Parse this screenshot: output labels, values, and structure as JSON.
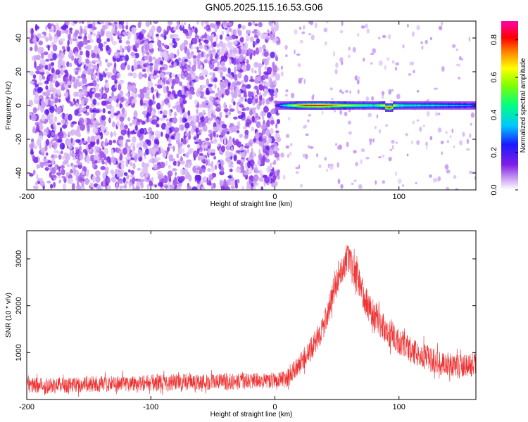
{
  "title": "GN05.2025.115.16.53.G06",
  "chart_data": [
    {
      "type": "heatmap",
      "xlabel": "Height of straight line (km)",
      "ylabel": "Frequency (Hz)",
      "xlim": [
        -200,
        162
      ],
      "ylim": [
        -50,
        50
      ],
      "xticks": [
        -200,
        -100,
        0,
        100
      ],
      "yticks": [
        -40,
        -20,
        0,
        20,
        40
      ],
      "colorbar": {
        "label": "Normalized spectral amplitude",
        "range": [
          0,
          0.9
        ],
        "ticks": [
          "0.0",
          "0.2",
          "0.4",
          "0.6",
          "0.8"
        ],
        "colormap": "rainbow (white/violet low to red/magenta high)"
      },
      "colors": {
        "low": "#d8b8f4",
        "mid": "#7f1fe6",
        "high": "#ff0000"
      },
      "signal_band": {
        "description": "narrow band centered near 0 Hz for heights 0 to 162 km",
        "x_start": 0,
        "x_end": 162,
        "frequency_center": 0,
        "frequency_halfwidth": 2.5,
        "amplitude_profile": [
          {
            "x": 0,
            "amp": 0.15
          },
          {
            "x": 5,
            "amp": 0.35
          },
          {
            "x": 20,
            "amp": 0.75
          },
          {
            "x": 35,
            "amp": 0.85
          },
          {
            "x": 50,
            "amp": 0.7
          },
          {
            "x": 65,
            "amp": 0.55
          },
          {
            "x": 80,
            "amp": 0.45
          },
          {
            "x": 92,
            "amp": 0.8
          },
          {
            "x": 100,
            "amp": 0.45
          },
          {
            "x": 130,
            "amp": 0.4
          },
          {
            "x": 162,
            "amp": 0.3
          }
        ]
      },
      "noise_region": {
        "description": "dense scattered noise blobs at all frequencies for heights below 0 km, sparse above",
        "x_start": -200,
        "x_end": 0
      }
    },
    {
      "type": "line",
      "xlabel": "Height of straight line (km)",
      "ylabel": "SNR (10 * v/v)",
      "xlim": [
        -200,
        162
      ],
      "ylim": [
        0,
        3600
      ],
      "xticks": [
        -200,
        -100,
        0,
        100
      ],
      "yticks": [
        1000,
        2000,
        3000
      ],
      "line_color": "#ee3333",
      "series": [
        {
          "envelope": [
            {
              "x": -200,
              "mean": 300,
              "spread": 170
            },
            {
              "x": -150,
              "mean": 320,
              "spread": 170
            },
            {
              "x": -100,
              "mean": 360,
              "spread": 180
            },
            {
              "x": -50,
              "mean": 380,
              "spread": 180
            },
            {
              "x": 0,
              "mean": 400,
              "spread": 170
            },
            {
              "x": 10,
              "mean": 450,
              "spread": 190
            },
            {
              "x": 20,
              "mean": 750,
              "spread": 230
            },
            {
              "x": 30,
              "mean": 1100,
              "spread": 250
            },
            {
              "x": 40,
              "mean": 1600,
              "spread": 280
            },
            {
              "x": 50,
              "mean": 2600,
              "spread": 320
            },
            {
              "x": 58,
              "mean": 3000,
              "spread": 350
            },
            {
              "x": 65,
              "mean": 2700,
              "spread": 340
            },
            {
              "x": 75,
              "mean": 2000,
              "spread": 320
            },
            {
              "x": 90,
              "mean": 1450,
              "spread": 300
            },
            {
              "x": 110,
              "mean": 1050,
              "spread": 280
            },
            {
              "x": 130,
              "mean": 800,
              "spread": 270
            },
            {
              "x": 150,
              "mean": 700,
              "spread": 260
            },
            {
              "x": 162,
              "mean": 750,
              "spread": 260
            }
          ]
        }
      ]
    }
  ]
}
